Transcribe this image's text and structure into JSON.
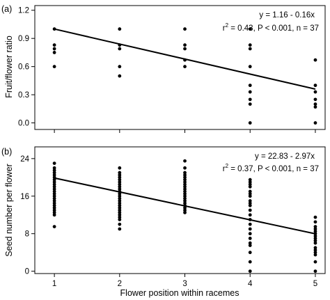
{
  "chart_data": [
    {
      "type": "scatter",
      "panel_label": "(a)",
      "ylabel": "Fruit/flower ratio",
      "xlabel": "",
      "xlim": [
        0.7,
        5.15
      ],
      "ylim": [
        -0.07,
        1.25
      ],
      "xticks": [
        "1",
        "2",
        "3",
        "4",
        "5"
      ],
      "yticks": [
        "0.0",
        "0.3",
        "0.6",
        "0.9",
        "1.2"
      ],
      "grid": false,
      "annotation_line1": "y = 1.16 - 0.16x",
      "annotation_line2_prefix": "r",
      "annotation_line2_sup": "2",
      "annotation_line2_rest": " = 0.43, P < 0.001, n = 37",
      "regression": {
        "intercept": 1.16,
        "slope": -0.16,
        "x_range": [
          1,
          5
        ]
      },
      "points": {
        "x": [
          1,
          1,
          1,
          1,
          1,
          2,
          2,
          2,
          2,
          2,
          3,
          3,
          3,
          3,
          3,
          4,
          4,
          4,
          4,
          4,
          4,
          4,
          4,
          4,
          5,
          5,
          5,
          5,
          5,
          5,
          5
        ],
        "y": [
          1.0,
          0.83,
          0.79,
          0.75,
          0.6,
          1.0,
          0.83,
          0.79,
          0.6,
          0.5,
          1.0,
          0.83,
          0.79,
          0.67,
          0.6,
          1.0,
          0.83,
          0.79,
          0.6,
          0.4,
          0.33,
          0.25,
          0.2,
          0.0,
          0.67,
          0.4,
          0.33,
          0.25,
          0.2,
          0.17,
          0.0
        ]
      }
    },
    {
      "type": "scatter",
      "panel_label": "(b)",
      "ylabel": "Seed number per flower",
      "xlabel": "Flower position within racemes",
      "xlim": [
        0.7,
        5.15
      ],
      "ylim": [
        -0.5,
        26.5
      ],
      "xticks": [
        "1",
        "2",
        "3",
        "4",
        "5"
      ],
      "yticks": [
        "0",
        "8",
        "16",
        "24"
      ],
      "grid": false,
      "annotation_line1": "y = 22.83 - 2.97x",
      "annotation_line2_prefix": "r",
      "annotation_line2_sup": "2",
      "annotation_line2_rest": " = 0.37, P < 0.001, n = 37",
      "regression": {
        "intercept": 22.83,
        "slope": -2.97,
        "x_range": [
          1,
          5
        ]
      },
      "points": {
        "x": [
          1,
          1,
          1,
          1,
          1,
          1,
          1,
          1,
          1,
          1,
          1,
          1,
          1,
          1,
          1,
          1,
          1,
          1,
          1,
          1,
          1,
          1,
          1,
          2,
          2,
          2,
          2,
          2,
          2,
          2,
          2,
          2,
          2,
          2,
          2,
          2,
          2,
          2,
          2,
          2,
          2,
          2,
          2,
          2,
          2,
          2,
          2,
          3,
          3,
          3,
          3,
          3,
          3,
          3,
          3,
          3,
          3,
          3,
          3,
          3,
          3,
          3,
          3,
          3,
          3,
          3,
          3,
          4,
          4,
          4,
          4,
          4,
          4,
          4,
          4,
          4,
          4,
          4,
          4,
          4,
          4,
          4,
          4,
          4,
          4,
          4,
          4,
          4,
          4,
          5,
          5,
          5,
          5,
          5,
          5,
          5,
          5,
          5,
          5,
          5,
          5,
          5,
          5,
          5,
          5
        ],
        "y": [
          23,
          22,
          21.5,
          21,
          20.5,
          20,
          19.5,
          19,
          18.5,
          18,
          17.5,
          17,
          16.5,
          16,
          15.5,
          15,
          14.5,
          14,
          13.5,
          13,
          12.5,
          12,
          9.5,
          22,
          21,
          20.5,
          20,
          19.5,
          19,
          18.5,
          18,
          17.5,
          17,
          16.5,
          16,
          15.5,
          15,
          14.5,
          14,
          13.5,
          13,
          12.5,
          12,
          11.5,
          11,
          10,
          9,
          23.5,
          22,
          21,
          20.5,
          20,
          19.5,
          19,
          18.5,
          18,
          17.5,
          17,
          16.5,
          16,
          15.5,
          15,
          14.5,
          14,
          13.5,
          13,
          12.5,
          19.5,
          19,
          18.5,
          18,
          17,
          16.5,
          16,
          15,
          14.5,
          14,
          13,
          12,
          11,
          10,
          9,
          8,
          7,
          6,
          5.5,
          4,
          2,
          0,
          11.5,
          10.5,
          9.5,
          9,
          8.5,
          8,
          7.5,
          7,
          6.5,
          6,
          5,
          4.5,
          4,
          3.5,
          2,
          0
        ]
      }
    }
  ]
}
